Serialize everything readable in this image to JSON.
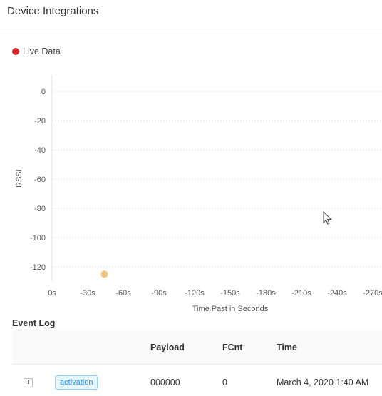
{
  "header": {
    "title": "Device Integrations"
  },
  "live": {
    "label": "Live Data",
    "color": "#d9262a"
  },
  "chart_data": {
    "type": "scatter",
    "xlabel": "Time Past in Seconds",
    "ylabel": "RSSI",
    "x_ticks": [
      "0s",
      "-30s",
      "-60s",
      "-90s",
      "-120s",
      "-150s",
      "-180s",
      "-210s",
      "-240s",
      "-270s"
    ],
    "y_ticks": [
      "0",
      "-20",
      "-40",
      "-60",
      "-80",
      "-100",
      "-120"
    ],
    "xlim": [
      0,
      -270
    ],
    "ylim": [
      -130,
      0
    ],
    "grid": true,
    "points": [
      {
        "x": -44,
        "y": -125
      }
    ],
    "point_color": "#f5c77e"
  },
  "event_log": {
    "title": "Event Log",
    "columns": [
      "Payload",
      "FCnt",
      "Time"
    ],
    "rows": [
      {
        "expand": "+",
        "type": "activation",
        "payload": "000000",
        "fcnt": "0",
        "time": "March 4, 2020 1:40 AM"
      }
    ]
  }
}
